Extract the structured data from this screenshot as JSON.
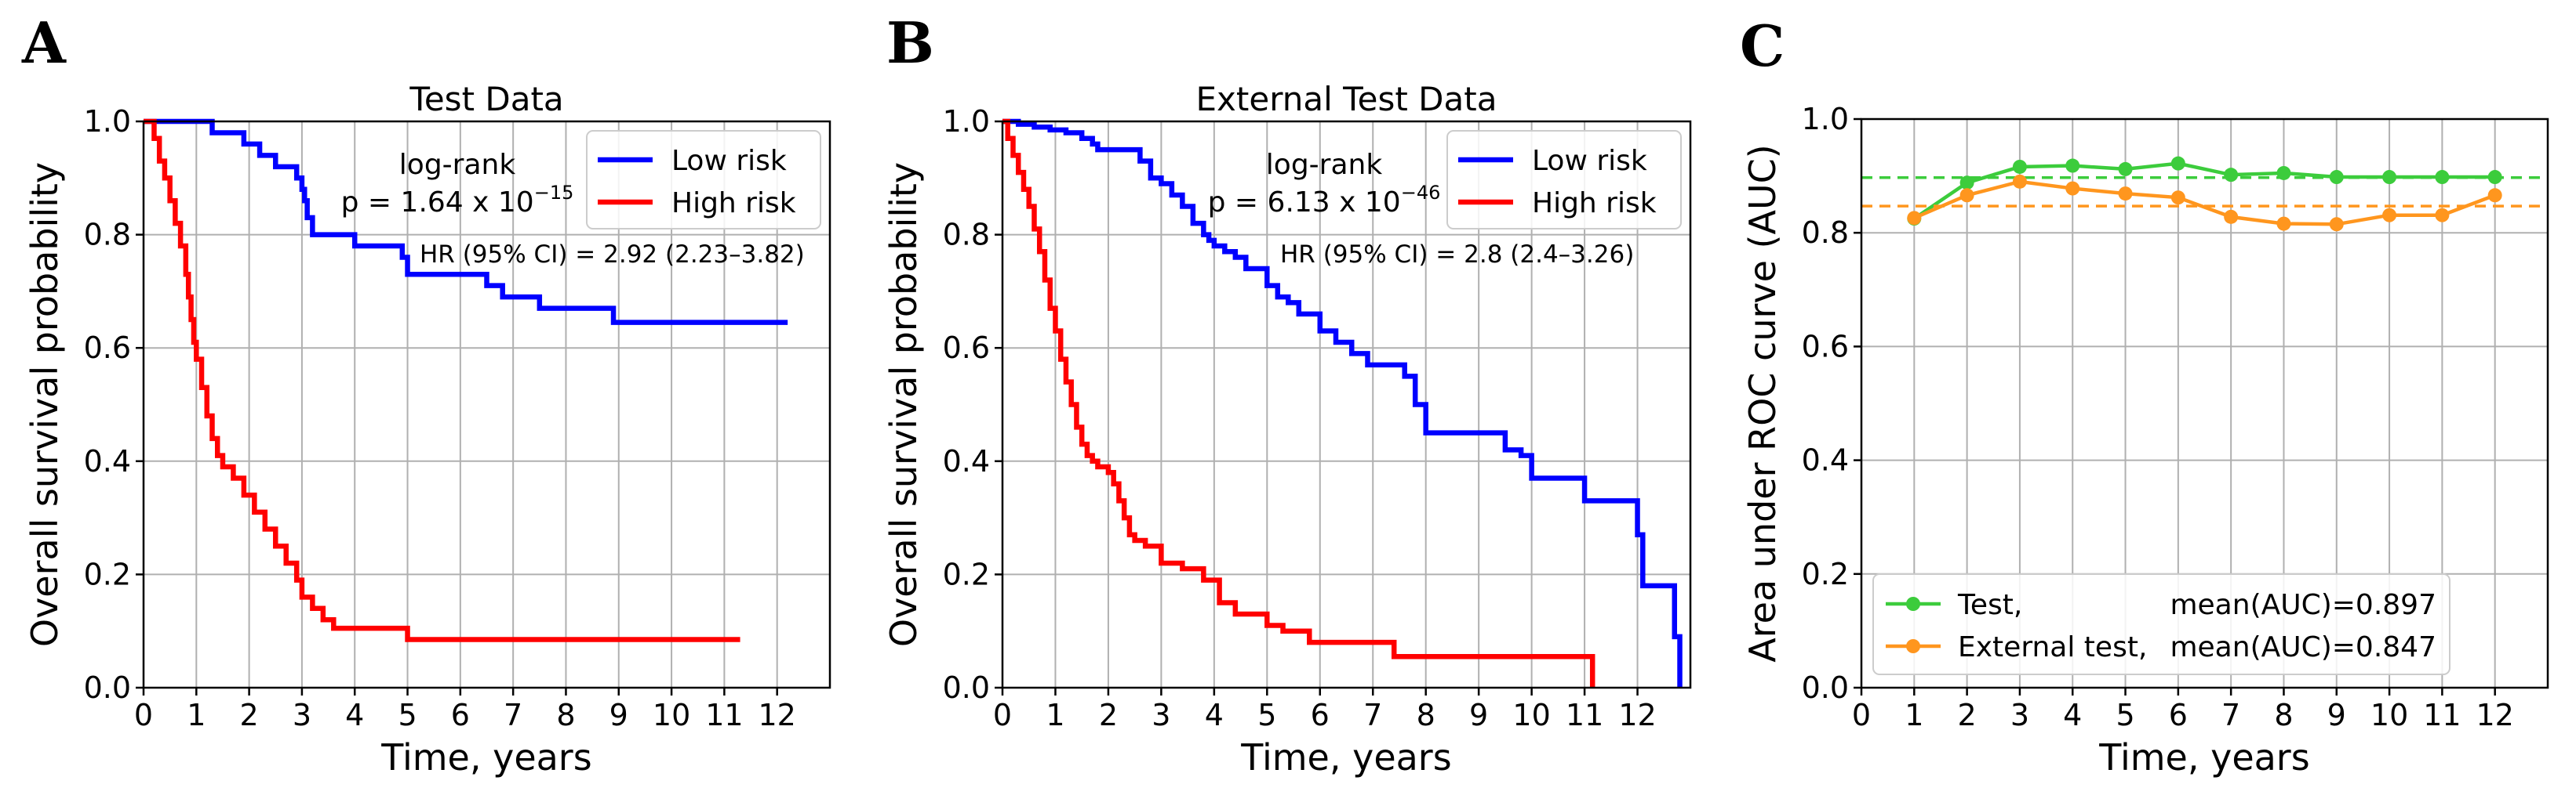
{
  "panels": {
    "A": {
      "letter": "A"
    },
    "B": {
      "letter": "B"
    },
    "C": {
      "letter": "C"
    }
  },
  "chart_data": [
    {
      "type": "line",
      "subtype": "kaplan-meier",
      "title": "Test Data",
      "xlabel": "Time, years",
      "ylabel": "Overall survival probability",
      "xlim": [
        0,
        13
      ],
      "ylim": [
        0,
        1.0
      ],
      "xticks": [
        0,
        1,
        2,
        3,
        4,
        5,
        6,
        7,
        8,
        9,
        10,
        11,
        12
      ],
      "yticks": [
        0.0,
        0.2,
        0.4,
        0.6,
        0.8,
        1.0
      ],
      "grid": true,
      "legend": "top-right",
      "annotations": {
        "logrank_label": "log-rank",
        "p_label": "p = 1.64 x 10",
        "p_exponent": "−15",
        "hr_label": "HR (95% CI) = 2.92 (2.23–3.82)"
      },
      "series": [
        {
          "name": "Low risk",
          "color": "#0000ff",
          "x": [
            0,
            1.1,
            1.3,
            1.6,
            1.9,
            2.2,
            2.5,
            2.7,
            2.9,
            3.0,
            3.05,
            3.1,
            3.2,
            3.8,
            4.0,
            4.5,
            4.9,
            5.0,
            5.3,
            6.3,
            6.5,
            6.8,
            7.2,
            7.5,
            8.0,
            8.9,
            9.5,
            10.0,
            11.0,
            12.2
          ],
          "y": [
            1.0,
            1.0,
            0.98,
            0.98,
            0.96,
            0.94,
            0.92,
            0.92,
            0.9,
            0.88,
            0.86,
            0.83,
            0.8,
            0.8,
            0.78,
            0.78,
            0.76,
            0.73,
            0.73,
            0.73,
            0.71,
            0.69,
            0.69,
            0.67,
            0.67,
            0.645,
            0.645,
            0.645,
            0.645,
            0.645
          ]
        },
        {
          "name": "High risk",
          "color": "#ff0000",
          "x": [
            0,
            0.2,
            0.3,
            0.4,
            0.5,
            0.6,
            0.7,
            0.8,
            0.85,
            0.9,
            0.95,
            1.0,
            1.1,
            1.2,
            1.3,
            1.4,
            1.5,
            1.7,
            1.9,
            2.1,
            2.3,
            2.5,
            2.7,
            2.9,
            3.0,
            3.2,
            3.4,
            3.6,
            3.8,
            4.9,
            5.0,
            11.3
          ],
          "y": [
            1.0,
            0.97,
            0.93,
            0.9,
            0.86,
            0.82,
            0.78,
            0.73,
            0.69,
            0.65,
            0.61,
            0.58,
            0.53,
            0.48,
            0.44,
            0.41,
            0.39,
            0.37,
            0.34,
            0.31,
            0.28,
            0.25,
            0.22,
            0.19,
            0.16,
            0.14,
            0.12,
            0.105,
            0.105,
            0.105,
            0.085,
            0.085
          ]
        }
      ]
    },
    {
      "type": "line",
      "subtype": "kaplan-meier",
      "title": "External Test Data",
      "xlabel": "Time, years",
      "ylabel": "Overall survival probability",
      "xlim": [
        0,
        13
      ],
      "ylim": [
        0,
        1.0
      ],
      "xticks": [
        0,
        1,
        2,
        3,
        4,
        5,
        6,
        7,
        8,
        9,
        10,
        11,
        12
      ],
      "yticks": [
        0.0,
        0.2,
        0.4,
        0.6,
        0.8,
        1.0
      ],
      "grid": true,
      "legend": "top-right",
      "annotations": {
        "logrank_label": "log-rank",
        "p_label": "p = 6.13 x 10",
        "p_exponent": "−46",
        "hr_label": "HR (95% CI) = 2.8 (2.4–3.26)"
      },
      "series": [
        {
          "name": "Low risk",
          "color": "#0000ff",
          "x": [
            0,
            0.3,
            0.6,
            0.9,
            1.2,
            1.5,
            1.7,
            1.8,
            2.0,
            2.2,
            2.6,
            2.8,
            3.0,
            3.2,
            3.4,
            3.6,
            3.8,
            3.9,
            4.0,
            4.2,
            4.4,
            4.6,
            4.8,
            5.0,
            5.2,
            5.4,
            5.6,
            5.8,
            6.0,
            6.3,
            6.6,
            6.9,
            7.2,
            7.6,
            7.8,
            8.0,
            9.5,
            9.8,
            10.0,
            11.0,
            11.1,
            12.0,
            12.1,
            12.7,
            12.8
          ],
          "y": [
            1.0,
            0.995,
            0.99,
            0.985,
            0.98,
            0.97,
            0.96,
            0.95,
            0.95,
            0.95,
            0.93,
            0.9,
            0.89,
            0.87,
            0.85,
            0.82,
            0.8,
            0.79,
            0.78,
            0.77,
            0.76,
            0.74,
            0.74,
            0.71,
            0.69,
            0.68,
            0.66,
            0.66,
            0.63,
            0.61,
            0.59,
            0.57,
            0.57,
            0.55,
            0.5,
            0.45,
            0.42,
            0.41,
            0.37,
            0.33,
            0.33,
            0.27,
            0.18,
            0.09,
            0.0
          ]
        },
        {
          "name": "High risk",
          "color": "#ff0000",
          "x": [
            0,
            0.1,
            0.2,
            0.3,
            0.4,
            0.5,
            0.6,
            0.7,
            0.8,
            0.9,
            1.0,
            1.1,
            1.2,
            1.3,
            1.4,
            1.5,
            1.6,
            1.7,
            1.8,
            2.0,
            2.1,
            2.2,
            2.3,
            2.4,
            2.5,
            2.7,
            3.0,
            3.4,
            3.8,
            4.1,
            4.4,
            5.0,
            5.3,
            5.8,
            6.2,
            7.4,
            9.8,
            11.1,
            11.15
          ],
          "y": [
            1.0,
            0.97,
            0.94,
            0.91,
            0.88,
            0.85,
            0.81,
            0.77,
            0.72,
            0.67,
            0.63,
            0.58,
            0.54,
            0.5,
            0.46,
            0.43,
            0.41,
            0.4,
            0.39,
            0.38,
            0.36,
            0.33,
            0.3,
            0.27,
            0.26,
            0.25,
            0.22,
            0.21,
            0.19,
            0.15,
            0.13,
            0.11,
            0.1,
            0.08,
            0.08,
            0.055,
            0.055,
            0.055,
            0.0
          ]
        }
      ]
    },
    {
      "type": "line",
      "title": "",
      "xlabel": "Time, years",
      "ylabel": "Area under ROC curve (AUC)",
      "xlim": [
        0,
        13
      ],
      "ylim": [
        0,
        1.0
      ],
      "xticks": [
        0,
        1,
        2,
        3,
        4,
        5,
        6,
        7,
        8,
        9,
        10,
        11,
        12
      ],
      "yticks": [
        0.0,
        0.2,
        0.4,
        0.6,
        0.8,
        1.0
      ],
      "grid": true,
      "legend": "bottom-left",
      "series": [
        {
          "name": "Test,",
          "legend_extra": "mean(AUC)=0.897",
          "color": "#3ccc3c",
          "x": [
            1,
            2,
            3,
            4,
            5,
            6,
            7,
            8,
            9,
            10,
            11,
            12
          ],
          "y": [
            0.825,
            0.888,
            0.916,
            0.918,
            0.912,
            0.922,
            0.902,
            0.905,
            0.898,
            0.898,
            0.898,
            0.898
          ],
          "mean": 0.897
        },
        {
          "name": "External test,",
          "legend_extra": "mean(AUC)=0.847",
          "color": "#ff961e",
          "x": [
            1,
            2,
            3,
            4,
            5,
            6,
            7,
            8,
            9,
            10,
            11,
            12
          ],
          "y": [
            0.826,
            0.866,
            0.89,
            0.878,
            0.869,
            0.862,
            0.828,
            0.816,
            0.815,
            0.831,
            0.831,
            0.866
          ],
          "mean": 0.847
        }
      ]
    }
  ]
}
